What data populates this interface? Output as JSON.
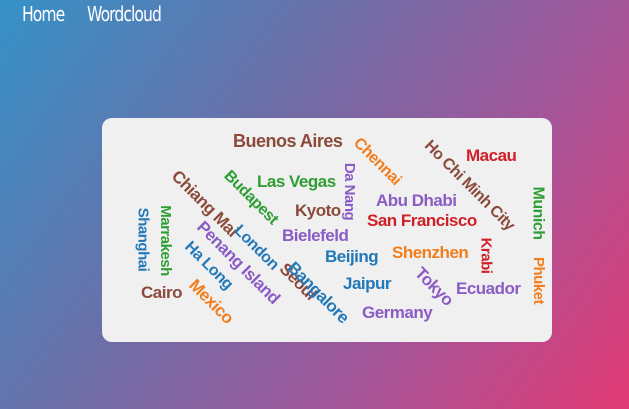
{
  "nav": {
    "home": "Home",
    "wordcloud": "Wordcloud"
  },
  "colors": {
    "brown": "#8b4a3c",
    "orange": "#f27d1d",
    "red": "#cf1f27",
    "green": "#2e9d33",
    "purple": "#8a5cc4",
    "blue": "#2378b8"
  },
  "words": [
    {
      "text": "Buenos Aires",
      "color": "#8b4a3c"
    },
    {
      "text": "Chennai",
      "color": "#f27d1d"
    },
    {
      "text": "Ho Chi Minh City",
      "color": "#8b4a3c"
    },
    {
      "text": "Macau",
      "color": "#cf1f27"
    },
    {
      "text": "Chiang Mai",
      "color": "#8b4a3c"
    },
    {
      "text": "Budapest",
      "color": "#2e9d33"
    },
    {
      "text": "Las Vegas",
      "color": "#2e9d33"
    },
    {
      "text": "Da Nang",
      "color": "#8a5cc4"
    },
    {
      "text": "Abu Dhabi",
      "color": "#8a5cc4"
    },
    {
      "text": "Munich",
      "color": "#2e9d33"
    },
    {
      "text": "Kyoto",
      "color": "#8b4a3c"
    },
    {
      "text": "San Francisco",
      "color": "#cf1f27"
    },
    {
      "text": "Marrakesh",
      "color": "#2e9d33"
    },
    {
      "text": "Shanghai",
      "color": "#2378b8"
    },
    {
      "text": "Penang Island",
      "color": "#8a5cc4"
    },
    {
      "text": "London",
      "color": "#2378b8"
    },
    {
      "text": "Bielefeld",
      "color": "#8a5cc4"
    },
    {
      "text": "Krabi",
      "color": "#cf1f27"
    },
    {
      "text": "Ha Long",
      "color": "#2378b8"
    },
    {
      "text": "Seoul",
      "color": "#8b4a3c"
    },
    {
      "text": "Beijing",
      "color": "#2378b8"
    },
    {
      "text": "Shenzhen",
      "color": "#f27d1d"
    },
    {
      "text": "Phuket",
      "color": "#f27d1d"
    },
    {
      "text": "Bangalore",
      "color": "#2378b8"
    },
    {
      "text": "Jaipur",
      "color": "#2378b8"
    },
    {
      "text": "Tokyo",
      "color": "#8a5cc4"
    },
    {
      "text": "Ecuador",
      "color": "#8a5cc4"
    },
    {
      "text": "Cairo",
      "color": "#8b4a3c"
    },
    {
      "text": "Mexico",
      "color": "#f27d1d"
    },
    {
      "text": "Germany",
      "color": "#8a5cc4"
    }
  ]
}
